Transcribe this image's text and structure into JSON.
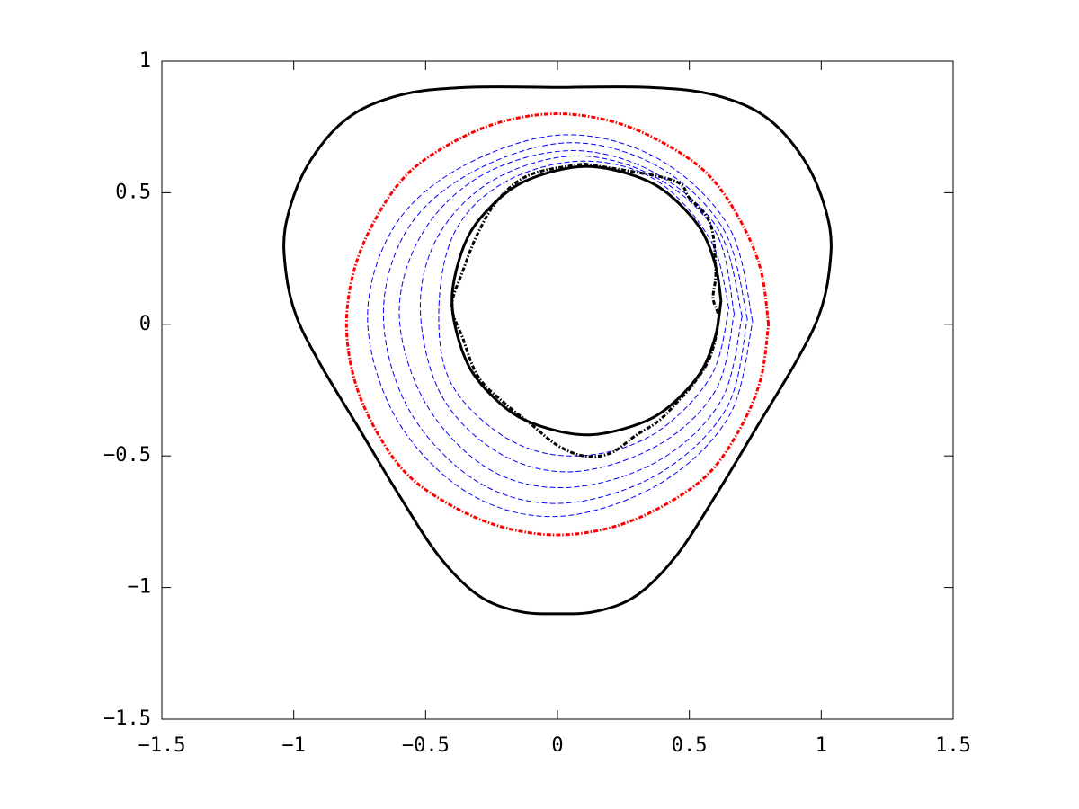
{
  "chart_data": {
    "type": "line",
    "grid": false,
    "xlim": [
      -1.5,
      1.5
    ],
    "ylim": [
      -1.5,
      1
    ],
    "xticks": [
      {
        "value": -1.5,
        "label": "−1.5"
      },
      {
        "value": -1,
        "label": "−1"
      },
      {
        "value": -0.5,
        "label": "−0.5"
      },
      0,
      0.5,
      1,
      1.5
    ],
    "yticks": [
      {
        "value": -1.5,
        "label": "−1.5"
      },
      {
        "value": -1,
        "label": "−1"
      },
      {
        "value": -0.5,
        "label": "−0.5"
      },
      0,
      0.5,
      1
    ],
    "series": [
      {
        "color": "#000000",
        "style": "solid",
        "x": [
          0,
          0.35,
          0.6,
          0.8,
          0.95,
          1.03,
          1.03,
          0.99,
          0.9,
          0.75,
          0.6,
          0.45,
          0.3,
          0.15,
          0,
          -0.15,
          -0.3,
          -0.45,
          -0.6,
          -0.75,
          -0.9,
          -0.99,
          -1.03,
          -1.03,
          -0.95,
          -0.8,
          -0.6,
          -0.35,
          0
        ],
        "values": [
          0.9,
          0.9,
          0.87,
          0.78,
          0.6,
          0.38,
          0.2,
          0.03,
          -0.15,
          -0.4,
          -0.65,
          -0.88,
          -1.03,
          -1.09,
          -1.1,
          -1.09,
          -1.03,
          -0.88,
          -0.65,
          -0.4,
          -0.15,
          0.03,
          0.2,
          0.38,
          0.6,
          0.78,
          0.87,
          0.9,
          0.9
        ]
      },
      {
        "color": "#ff0000",
        "style": "dashdot",
        "x": [
          0.8,
          0.77,
          0.69,
          0.57,
          0.4,
          0.21,
          0,
          -0.21,
          -0.4,
          -0.57,
          -0.69,
          -0.77,
          -0.8,
          -0.77,
          -0.69,
          -0.57,
          -0.4,
          -0.21,
          0,
          0.21,
          0.4,
          0.57,
          0.69,
          0.77,
          0.8
        ],
        "values": [
          0,
          0.21,
          0.4,
          0.57,
          0.69,
          0.77,
          0.8,
          0.77,
          0.69,
          0.57,
          0.4,
          0.21,
          0,
          -0.21,
          -0.4,
          -0.57,
          -0.69,
          -0.77,
          -0.8,
          -0.77,
          -0.69,
          -0.57,
          -0.4,
          -0.21,
          0
        ]
      },
      {
        "color": "#0000ff",
        "style": "dashed",
        "x": [
          0.65,
          0.58,
          0.37,
          0.09,
          -0.2,
          -0.39,
          -0.45,
          -0.4,
          -0.18,
          0.08,
          0.36,
          0.58,
          0.65
        ],
        "values": [
          0.06,
          0.32,
          0.55,
          0.62,
          0.54,
          0.35,
          0.05,
          -0.23,
          -0.44,
          -0.5,
          -0.42,
          -0.2,
          0.06
        ]
      },
      {
        "color": "#0000ff",
        "style": "dashed",
        "x": [
          0.67,
          0.6,
          0.37,
          0.07,
          -0.24,
          -0.45,
          -0.52,
          -0.44,
          -0.22,
          0.06,
          0.38,
          0.6,
          0.67
        ],
        "values": [
          0.04,
          0.35,
          0.56,
          0.64,
          0.55,
          0.34,
          0.06,
          -0.27,
          -0.49,
          -0.56,
          -0.46,
          -0.25,
          0.04
        ]
      },
      {
        "color": "#0000ff",
        "style": "dashed",
        "x": [
          0.7,
          0.61,
          0.36,
          0.05,
          -0.28,
          -0.51,
          -0.6,
          -0.5,
          -0.26,
          0.04,
          0.38,
          0.62,
          0.7
        ],
        "values": [
          0.03,
          0.36,
          0.58,
          0.66,
          0.57,
          0.35,
          0.04,
          -0.3,
          -0.55,
          -0.62,
          -0.52,
          -0.29,
          0.03
        ]
      },
      {
        "color": "#0000ff",
        "style": "dashed",
        "x": [
          0.72,
          0.63,
          0.38,
          0.04,
          -0.32,
          -0.57,
          -0.66,
          -0.56,
          -0.3,
          0.02,
          0.38,
          0.64,
          0.72
        ],
        "values": [
          0.02,
          0.36,
          0.6,
          0.69,
          0.58,
          0.36,
          0.03,
          -0.33,
          -0.6,
          -0.68,
          -0.57,
          -0.32,
          0.02
        ]
      },
      {
        "color": "#0000ff",
        "style": "dashed",
        "x": [
          0.74,
          0.65,
          0.38,
          0.02,
          -0.36,
          -0.62,
          -0.72,
          -0.61,
          -0.34,
          0,
          0.38,
          0.65,
          0.74
        ],
        "values": [
          0.01,
          0.37,
          0.63,
          0.72,
          0.6,
          0.37,
          0.02,
          -0.36,
          -0.64,
          -0.73,
          -0.61,
          -0.35,
          0.01
        ]
      },
      {
        "color": "#000000",
        "style": "solid",
        "x": [
          0.62,
          0.6,
          0.55,
          0.47,
          0.37,
          0.24,
          0.11,
          -0.02,
          -0.15,
          -0.25,
          -0.33,
          -0.38,
          -0.4,
          -0.38,
          -0.33,
          -0.25,
          -0.15,
          -0.02,
          0.11,
          0.24,
          0.37,
          0.47,
          0.55,
          0.6,
          0.62
        ],
        "values": [
          0.09,
          0.22,
          0.35,
          0.45,
          0.53,
          0.58,
          0.6,
          0.58,
          0.53,
          0.45,
          0.35,
          0.22,
          0.09,
          -0.04,
          -0.17,
          -0.27,
          -0.35,
          -0.4,
          -0.42,
          -0.4,
          -0.35,
          -0.27,
          -0.17,
          -0.04,
          0.09
        ]
      },
      {
        "color": "#000000",
        "style": "dashdot",
        "x": [
          0.1,
          0.43,
          0.5,
          0.58,
          0.6,
          0.59,
          0.61,
          0.58,
          0.52,
          0.45,
          0.38,
          0.3,
          0.2,
          0.1,
          0,
          -0.1,
          -0.2,
          -0.3,
          -0.36,
          -0.4,
          -0.36,
          -0.3,
          -0.22,
          -0.1,
          0.1
        ],
        "values": [
          0.61,
          0.55,
          0.48,
          0.38,
          0.2,
          0.1,
          0.02,
          -0.12,
          -0.22,
          -0.3,
          -0.37,
          -0.42,
          -0.49,
          -0.5,
          -0.46,
          -0.38,
          -0.3,
          -0.2,
          -0.05,
          0.07,
          0.2,
          0.35,
          0.48,
          0.57,
          0.61
        ]
      }
    ]
  }
}
